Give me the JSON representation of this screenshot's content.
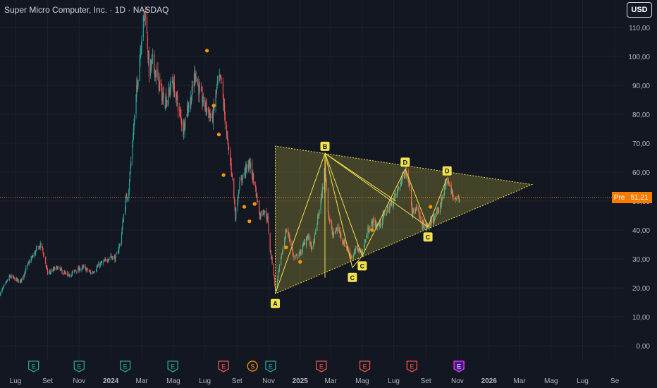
{
  "header": {
    "title": "Super Micro Computer, Inc. · 1D · NASDAQ",
    "currency": "USD"
  },
  "price_tag": {
    "label": "Pre",
    "value": "51,21"
  },
  "colors": {
    "background": "#131722",
    "grid": "#1e222d",
    "up": "#26a69a",
    "down": "#ef5350",
    "pattern": "#f2e24b",
    "pre_price": "#f57c00",
    "dividend_marker": "#ff9800"
  },
  "chart_data": {
    "type": "candlestick",
    "ylim": [
      -5,
      118
    ],
    "y_ticks": [
      {
        "value": 0,
        "label": "0,00"
      },
      {
        "value": 10,
        "label": "10,00"
      },
      {
        "value": 20,
        "label": "20,00"
      },
      {
        "value": 30,
        "label": "30,00"
      },
      {
        "value": 40,
        "label": "40,00"
      },
      {
        "value": 50,
        "label": "50,00"
      },
      {
        "value": 60,
        "label": "60,00"
      },
      {
        "value": 70,
        "label": "70,00"
      },
      {
        "value": 80,
        "label": "80,00"
      },
      {
        "value": 90,
        "label": "90,00"
      },
      {
        "value": 100,
        "label": "100,00"
      },
      {
        "value": 110,
        "label": "110,00"
      }
    ],
    "x_ticks": [
      {
        "date": "2023-07-01",
        "label": "Lug",
        "bold": false
      },
      {
        "date": "2023-09-01",
        "label": "Set",
        "bold": false
      },
      {
        "date": "2023-11-01",
        "label": "Nov",
        "bold": false
      },
      {
        "date": "2024-01-01",
        "label": "2024",
        "bold": true
      },
      {
        "date": "2024-03-01",
        "label": "Mar",
        "bold": false
      },
      {
        "date": "2024-05-01",
        "label": "Mag",
        "bold": false
      },
      {
        "date": "2024-07-01",
        "label": "Lug",
        "bold": false
      },
      {
        "date": "2024-09-01",
        "label": "Set",
        "bold": false
      },
      {
        "date": "2024-11-01",
        "label": "Nov",
        "bold": false
      },
      {
        "date": "2025-01-01",
        "label": "2025",
        "bold": true
      },
      {
        "date": "2025-03-01",
        "label": "Mar",
        "bold": false
      },
      {
        "date": "2025-05-01",
        "label": "Mag",
        "bold": false
      },
      {
        "date": "2025-07-01",
        "label": "Lug",
        "bold": false
      },
      {
        "date": "2025-09-01",
        "label": "Set",
        "bold": false
      },
      {
        "date": "2025-11-01",
        "label": "Nov",
        "bold": false
      },
      {
        "date": "2026-01-01",
        "label": "2026",
        "bold": true
      },
      {
        "date": "2026-03-01",
        "label": "Mar",
        "bold": false
      },
      {
        "date": "2026-05-01",
        "label": "Mag",
        "bold": false
      },
      {
        "date": "2026-07-01",
        "label": "Lug",
        "bold": false
      },
      {
        "date": "2026-09-01",
        "label": "Se",
        "bold": false
      }
    ],
    "price_path": [
      [
        "2023-06-01",
        18
      ],
      [
        "2023-06-20",
        24
      ],
      [
        "2023-07-10",
        22
      ],
      [
        "2023-07-25",
        28
      ],
      [
        "2023-08-10",
        33
      ],
      [
        "2023-08-20",
        35
      ],
      [
        "2023-09-01",
        25
      ],
      [
        "2023-09-20",
        27
      ],
      [
        "2023-10-10",
        24
      ],
      [
        "2023-10-25",
        26
      ],
      [
        "2023-11-10",
        27
      ],
      [
        "2023-11-25",
        25
      ],
      [
        "2023-12-10",
        28
      ],
      [
        "2023-12-20",
        29
      ],
      [
        "2024-01-01",
        31
      ],
      [
        "2024-01-10",
        30
      ],
      [
        "2024-01-20",
        36
      ],
      [
        "2024-01-28",
        48
      ],
      [
        "2024-02-05",
        55
      ],
      [
        "2024-02-12",
        70
      ],
      [
        "2024-02-20",
        88
      ],
      [
        "2024-02-26",
        100
      ],
      [
        "2024-03-01",
        108
      ],
      [
        "2024-03-08",
        116
      ],
      [
        "2024-03-15",
        95
      ],
      [
        "2024-03-22",
        98
      ],
      [
        "2024-04-01",
        92
      ],
      [
        "2024-04-10",
        86
      ],
      [
        "2024-04-20",
        85
      ],
      [
        "2024-04-28",
        92
      ],
      [
        "2024-05-10",
        83
      ],
      [
        "2024-05-20",
        75
      ],
      [
        "2024-05-28",
        82
      ],
      [
        "2024-06-05",
        86
      ],
      [
        "2024-06-12",
        95
      ],
      [
        "2024-06-20",
        88
      ],
      [
        "2024-06-28",
        84
      ],
      [
        "2024-07-05",
        82
      ],
      [
        "2024-07-15",
        78
      ],
      [
        "2024-07-25",
        90
      ],
      [
        "2024-08-01",
        92
      ],
      [
        "2024-08-08",
        80
      ],
      [
        "2024-08-15",
        68
      ],
      [
        "2024-08-22",
        60
      ],
      [
        "2024-08-29",
        45
      ],
      [
        "2024-09-05",
        55
      ],
      [
        "2024-09-15",
        60
      ],
      [
        "2024-09-25",
        63
      ],
      [
        "2024-10-05",
        56
      ],
      [
        "2024-10-15",
        45
      ],
      [
        "2024-10-22",
        47
      ],
      [
        "2024-10-30",
        44
      ],
      [
        "2024-11-04",
        33
      ],
      [
        "2024-11-10",
        27
      ],
      [
        "2024-11-14",
        19
      ],
      [
        "2024-11-20",
        25
      ],
      [
        "2024-11-28",
        33
      ],
      [
        "2024-12-05",
        40
      ],
      [
        "2024-12-12",
        37
      ],
      [
        "2024-12-20",
        30
      ],
      [
        "2025-01-01",
        32
      ],
      [
        "2025-01-15",
        38
      ],
      [
        "2025-01-25",
        33
      ],
      [
        "2025-02-05",
        45
      ],
      [
        "2025-02-12",
        52
      ],
      [
        "2025-02-18",
        62
      ],
      [
        "2025-02-25",
        45
      ],
      [
        "2025-03-05",
        38
      ],
      [
        "2025-03-15",
        41
      ],
      [
        "2025-03-25",
        36
      ],
      [
        "2025-04-04",
        33
      ],
      [
        "2025-04-12",
        30
      ],
      [
        "2025-04-20",
        34
      ],
      [
        "2025-05-01",
        32
      ],
      [
        "2025-05-12",
        40
      ],
      [
        "2025-05-22",
        43
      ],
      [
        "2025-06-01",
        41
      ],
      [
        "2025-06-12",
        45
      ],
      [
        "2025-06-22",
        48
      ],
      [
        "2025-07-05",
        52
      ],
      [
        "2025-07-15",
        57
      ],
      [
        "2025-07-23",
        61
      ],
      [
        "2025-08-01",
        56
      ],
      [
        "2025-08-06",
        46
      ],
      [
        "2025-08-15",
        47
      ],
      [
        "2025-08-25",
        42
      ],
      [
        "2025-09-05",
        41
      ],
      [
        "2025-09-15",
        44
      ],
      [
        "2025-09-25",
        46
      ],
      [
        "2025-10-05",
        53
      ],
      [
        "2025-10-12",
        58
      ],
      [
        "2025-10-20",
        53
      ],
      [
        "2025-10-28",
        51
      ],
      [
        "2025-11-05",
        51
      ]
    ],
    "pre_market_price": 51.21,
    "pattern": {
      "triangle": [
        [
          "2024-11-14",
          18
        ],
        [
          "2024-11-14",
          69
        ],
        [
          "2026-03-25",
          55.7
        ]
      ],
      "inner_zigzag": [
        [
          "2024-11-14",
          18
        ],
        [
          "2025-02-18",
          66.5
        ],
        [
          "2025-04-12",
          27
        ],
        [
          "2025-05-01",
          31
        ],
        [
          "2025-07-23",
          61
        ],
        [
          "2025-09-05",
          41
        ],
        [
          "2025-10-12",
          58
        ]
      ],
      "fan_lines": [
        [
          [
            "2025-02-18",
            66.5
          ],
          [
            "2025-02-18",
            23.5
          ]
        ],
        [
          [
            "2025-02-18",
            66.5
          ],
          [
            "2025-05-01",
            31
          ]
        ],
        [
          [
            "2025-02-18",
            66.5
          ],
          [
            "2025-07-05",
            50
          ]
        ],
        [
          [
            "2025-02-18",
            66.5
          ],
          [
            "2025-09-05",
            41
          ]
        ]
      ],
      "points": [
        {
          "label": "A",
          "date": "2024-11-14",
          "value": 18,
          "pos": "below"
        },
        {
          "label": "B",
          "date": "2025-02-18",
          "value": 66.5,
          "pos": "above"
        },
        {
          "label": "C",
          "date": "2025-04-12",
          "value": 27,
          "pos": "below"
        },
        {
          "label": "C",
          "date": "2025-05-01",
          "value": 31,
          "pos": "below"
        },
        {
          "label": "D",
          "date": "2025-07-23",
          "value": 61,
          "pos": "above"
        },
        {
          "label": "C",
          "date": "2025-09-05",
          "value": 41,
          "pos": "below"
        },
        {
          "label": "D",
          "date": "2025-10-12",
          "value": 58,
          "pos": "above"
        }
      ]
    },
    "dividend_markers": [
      {
        "date": "2024-07-05",
        "value": 102
      },
      {
        "date": "2024-07-18",
        "value": 83
      },
      {
        "date": "2024-07-28",
        "value": 73
      },
      {
        "date": "2024-08-06",
        "value": 59
      },
      {
        "date": "2024-09-15",
        "value": 48
      },
      {
        "date": "2024-09-25",
        "value": 43
      },
      {
        "date": "2024-10-05",
        "value": 49
      },
      {
        "date": "2024-12-05",
        "value": 34
      },
      {
        "date": "2025-01-01",
        "value": 29
      },
      {
        "date": "2025-05-20",
        "value": 40
      },
      {
        "date": "2025-09-10",
        "value": 48
      }
    ],
    "events": [
      {
        "date": "2023-08-05",
        "label": "E",
        "type": "earnings-past"
      },
      {
        "date": "2023-11-01",
        "label": "E",
        "type": "earnings-past"
      },
      {
        "date": "2024-01-29",
        "label": "E",
        "type": "earnings-past"
      },
      {
        "date": "2024-04-30",
        "label": "E",
        "type": "earnings-past"
      },
      {
        "date": "2024-08-06",
        "label": "E",
        "type": "earnings-miss"
      },
      {
        "date": "2024-10-01",
        "label": "S",
        "type": "split"
      },
      {
        "date": "2024-11-05",
        "label": "E",
        "type": "earnings-past"
      },
      {
        "date": "2025-02-11",
        "label": "E",
        "type": "earnings-miss"
      },
      {
        "date": "2025-05-06",
        "label": "E",
        "type": "earnings-miss"
      },
      {
        "date": "2025-08-05",
        "label": "E",
        "type": "earnings-miss"
      },
      {
        "date": "2025-11-04",
        "label": "E",
        "type": "earnings-upcoming"
      }
    ]
  }
}
